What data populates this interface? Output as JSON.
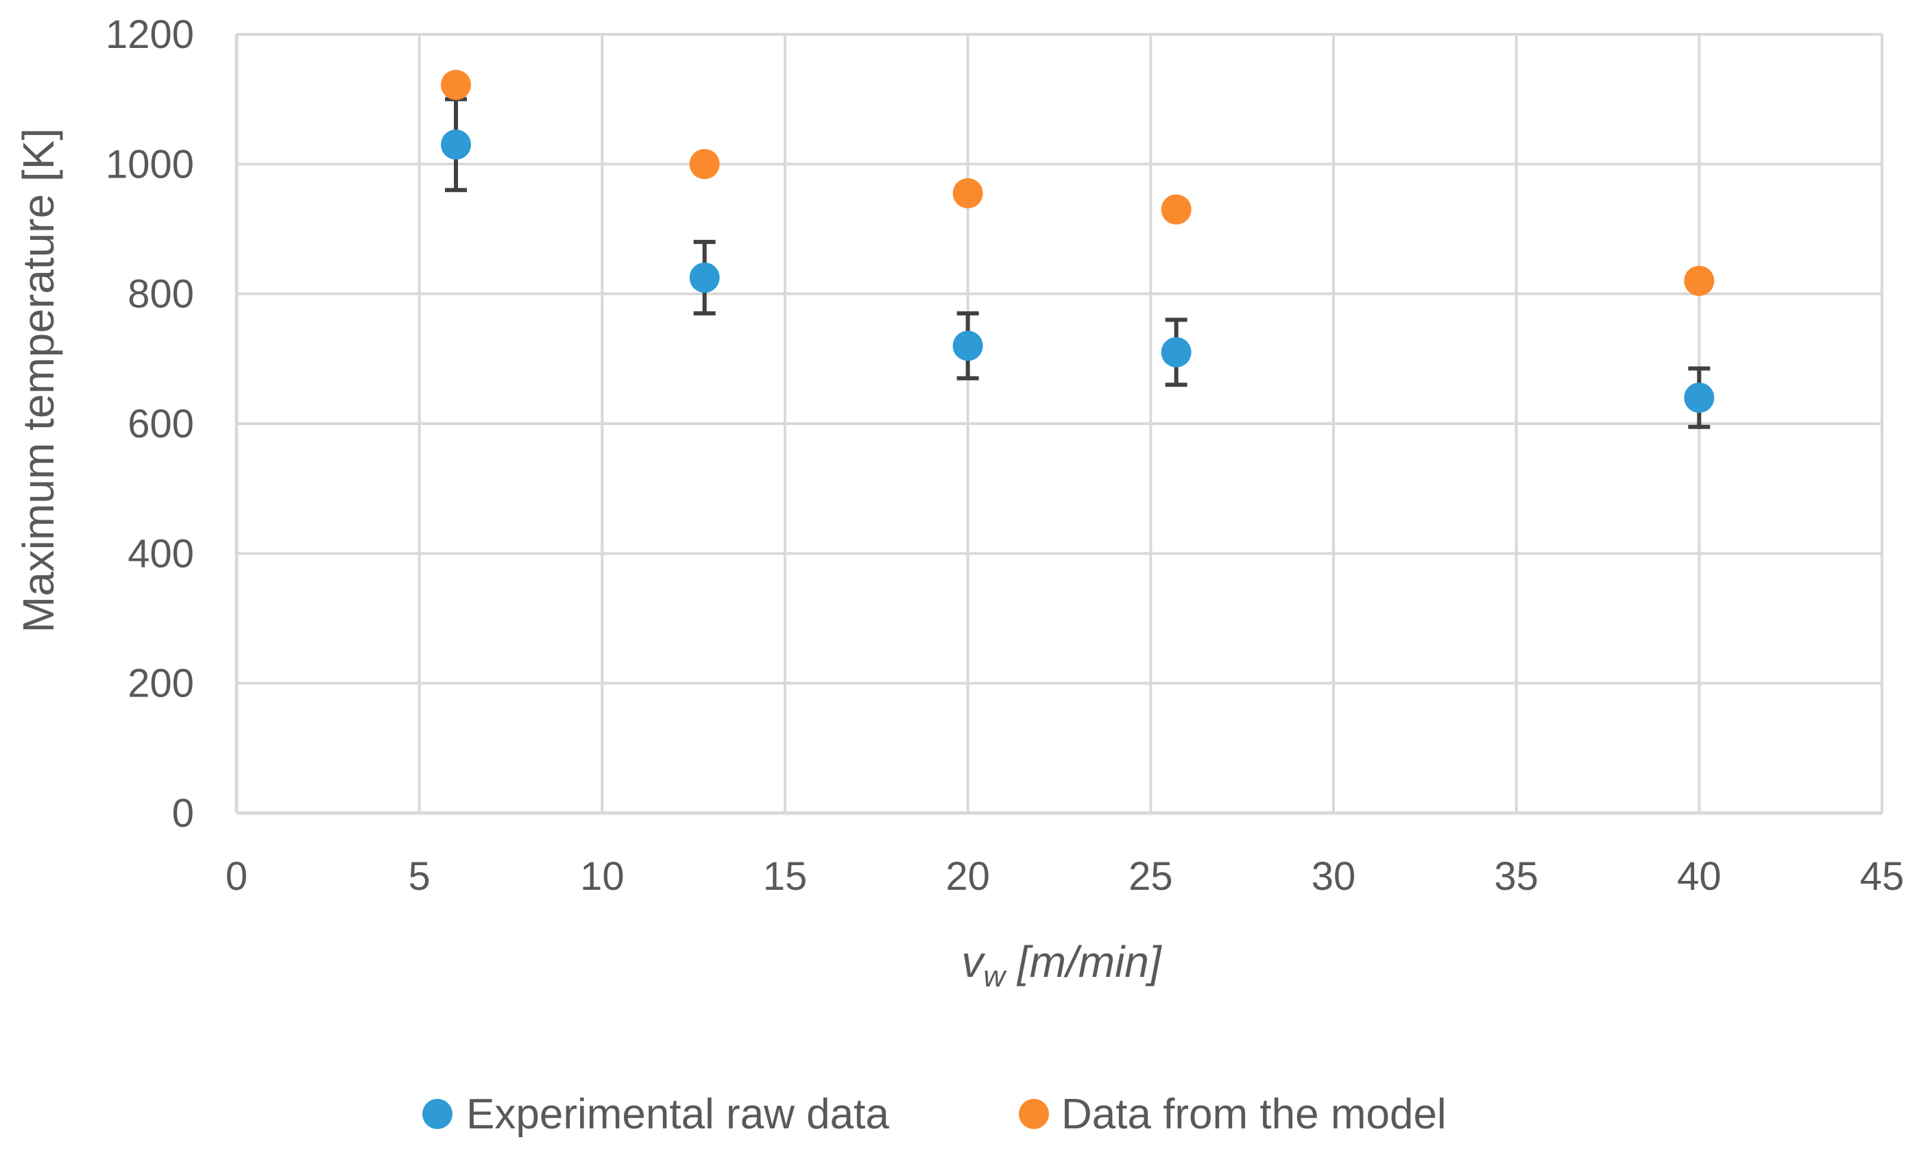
{
  "chart_data": {
    "type": "scatter",
    "title": "",
    "xlabel_main": "v",
    "xlabel_sub": "w",
    "xlabel_rest": " [m/min]",
    "ylabel": "Maximum temperature [K]",
    "xlim": [
      0,
      45
    ],
    "ylim": [
      0,
      1200
    ],
    "xticks": [
      0,
      5,
      10,
      15,
      20,
      25,
      30,
      35,
      40,
      45
    ],
    "yticks": [
      0,
      200,
      400,
      600,
      800,
      1000,
      1200
    ],
    "grid": true,
    "legend_position": "bottom",
    "series": [
      {
        "name": "Experimental raw data",
        "color": "#2e9ad6",
        "x": [
          6,
          12.8,
          20,
          25.7,
          40
        ],
        "y": [
          1030,
          825,
          720,
          710,
          640
        ],
        "error": [
          70,
          55,
          50,
          50,
          45
        ]
      },
      {
        "name": "Data from the model",
        "color": "#fb8a2d",
        "x": [
          6,
          12.8,
          20,
          25.7,
          40
        ],
        "y": [
          1122,
          1000,
          955,
          930,
          820
        ]
      }
    ]
  }
}
